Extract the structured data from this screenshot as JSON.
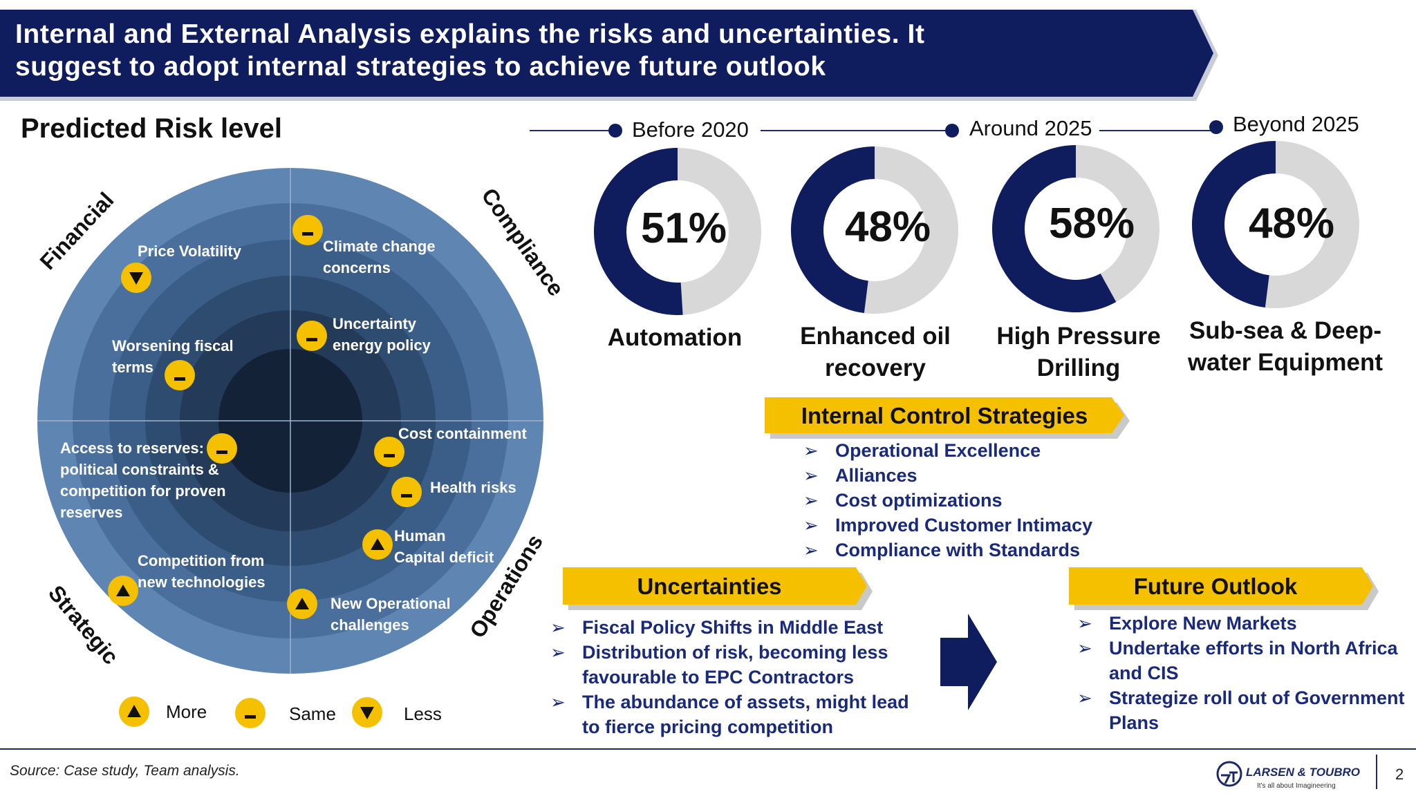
{
  "header": {
    "title_line1": "Internal and External Analysis explains the risks and uncertainties. It",
    "title_line2": "suggest to adopt internal strategies to achieve future outlook",
    "color": "#0f1d5e"
  },
  "risk": {
    "title": "Predicted Risk level",
    "quadrants": {
      "financial": "Financial",
      "compliance": "Compliance",
      "strategic": "Strategic",
      "operations": "Operations"
    },
    "items": {
      "price_volatility": {
        "label": "Price Volatility",
        "trend": "less"
      },
      "climate_line1": "Climate change",
      "climate_line2": "concerns",
      "climate_trend": "same",
      "uncertainty_line1": "Uncertainty",
      "uncertainty_line2": "energy policy",
      "uncertainty_trend": "same",
      "fiscal_line1": "Worsening fiscal",
      "fiscal_line2": "terms",
      "fiscal_trend": "same",
      "reserves_line1": "Access to reserves:",
      "reserves_line2": "political constraints &",
      "reserves_line3": "competition for proven",
      "reserves_line4": "reserves",
      "reserves_trend": "same",
      "cost_containment": "Cost containment",
      "cost_trend": "same",
      "health_risks": "Health risks",
      "health_trend": "same",
      "human_line1": "Human",
      "human_line2": "Capital deficit",
      "human_trend": "more",
      "competition_line1": "Competition from",
      "competition_line2": "new technologies",
      "competition_trend": "more",
      "newop_line1": "New Operational",
      "newop_line2": "challenges",
      "newop_trend": "more"
    },
    "legend": {
      "more": "More",
      "same": "Same",
      "less": "Less"
    },
    "colors": {
      "outer": "#5f86b3",
      "inner": "#142238",
      "badge": "#f5c000"
    }
  },
  "timeline": {
    "labels": [
      "Before 2020",
      "Around 2025",
      "Beyond 2025"
    ]
  },
  "donuts": [
    {
      "percent": 51,
      "label": "51%",
      "caption_line1": "Automation",
      "caption_line2": ""
    },
    {
      "percent": 48,
      "label": "48%",
      "caption_line1": "Enhanced oil",
      "caption_line2": "recovery"
    },
    {
      "percent": 58,
      "label": "58%",
      "caption_line1": "High Pressure",
      "caption_line2": "Drilling"
    },
    {
      "percent": 48,
      "label": "48%",
      "caption_line1": "Sub-sea & Deep-",
      "caption_line2": "water Equipment"
    }
  ],
  "donut_colors": {
    "fill": "#0f1d5e",
    "track": "#d8d8d8"
  },
  "internal_control": {
    "title": "Internal Control Strategies",
    "items": [
      "Operational Excellence",
      "Alliances",
      "Cost optimizations",
      "Improved Customer Intimacy",
      "Compliance with Standards"
    ]
  },
  "uncertainties": {
    "title": "Uncertainties",
    "items": [
      {
        "line1": "Fiscal Policy Shifts in Middle East",
        "line2": ""
      },
      {
        "line1": "Distribution of risk, becoming less",
        "line2": "favourable to EPC Contractors"
      },
      {
        "line1": "The abundance of assets, might lead",
        "line2": "to fierce pricing competition"
      }
    ]
  },
  "future_outlook": {
    "title": "Future Outlook",
    "items": [
      {
        "line1": "Explore New Markets",
        "line2": ""
      },
      {
        "line1": "Undertake efforts in North Africa",
        "line2": "and CIS"
      },
      {
        "line1": "Strategize roll out of Government",
        "line2": "Plans"
      }
    ]
  },
  "footer": {
    "source": "Source: Case study, Team analysis.",
    "company": "LARSEN & TOUBRO",
    "tagline": "It's all about Imagineering",
    "page": "2"
  }
}
